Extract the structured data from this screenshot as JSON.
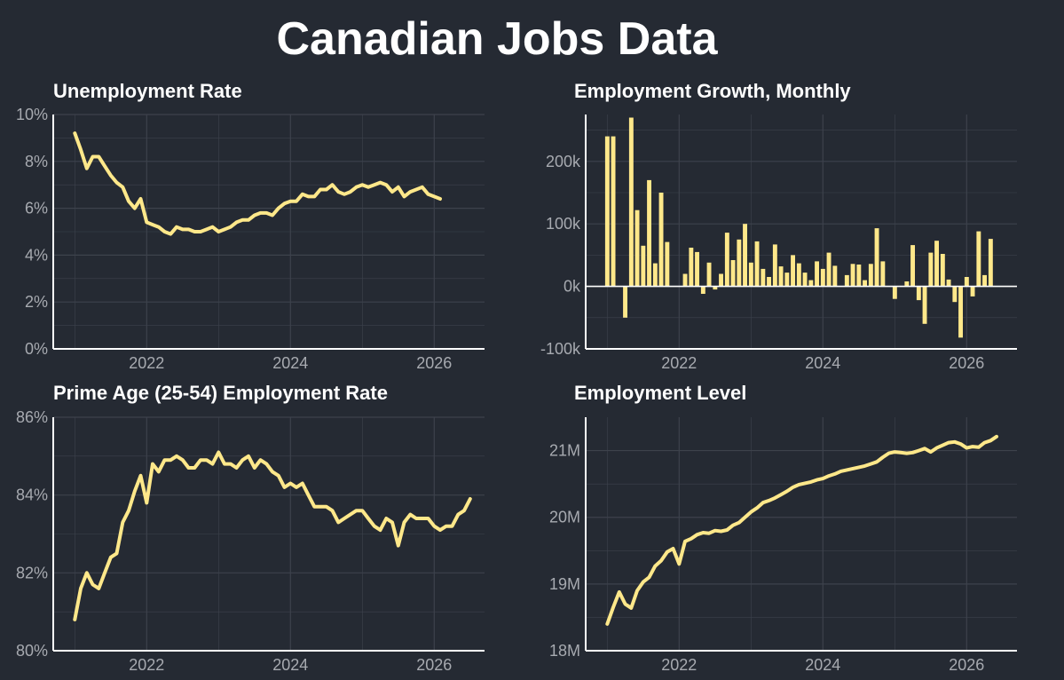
{
  "title": "Canadian Jobs Data",
  "colors": {
    "background": "#252a33",
    "line": "#ffe88a",
    "grid": "#3d424c",
    "axis": "#ffffff",
    "tick_text": "#a7aab0",
    "title_text": "#ffffff"
  },
  "chart_data": [
    {
      "id": "unemp",
      "type": "line",
      "title": "Unemployment Rate",
      "xlim": [
        2020.7,
        2026.7
      ],
      "ylim": [
        0,
        10
      ],
      "x_ticks": [
        2022,
        2024,
        2026
      ],
      "x_tick_labels": [
        "2022",
        "2024",
        "2026"
      ],
      "y_ticks": [
        0,
        2,
        4,
        6,
        8,
        10
      ],
      "y_tick_labels": [
        "0%",
        "2%",
        "4%",
        "6%",
        "8%",
        "10%"
      ],
      "grid": true,
      "series": [
        {
          "x_start": 2021.0,
          "x_step": 0.08333,
          "values": [
            9.2,
            8.5,
            7.7,
            8.2,
            8.2,
            7.8,
            7.4,
            7.1,
            6.9,
            6.3,
            6.0,
            6.4,
            5.4,
            5.3,
            5.2,
            5.0,
            4.9,
            5.2,
            5.1,
            5.1,
            5.0,
            5.0,
            5.1,
            5.2,
            5.0,
            5.1,
            5.2,
            5.4,
            5.5,
            5.5,
            5.7,
            5.8,
            5.8,
            5.7,
            6.0,
            6.2,
            6.3,
            6.3,
            6.6,
            6.5,
            6.5,
            6.8,
            6.8,
            7.0,
            6.7,
            6.6,
            6.7,
            6.9,
            7.0,
            6.9,
            7.0,
            7.1,
            7.0,
            6.7,
            6.9,
            6.5,
            6.7,
            6.8,
            6.9,
            6.6,
            6.5,
            6.4
          ]
        }
      ]
    },
    {
      "id": "growth",
      "type": "bar",
      "title": "Employment Growth, Monthly",
      "xlim": [
        2020.7,
        2026.7
      ],
      "ylim": [
        -100000,
        275000
      ],
      "x_ticks": [
        2022,
        2024,
        2026
      ],
      "x_tick_labels": [
        "2022",
        "2024",
        "2026"
      ],
      "y_ticks": [
        -100000,
        0,
        100000,
        200000
      ],
      "y_tick_labels": [
        "-100k",
        "0k",
        "100k",
        "200k"
      ],
      "grid": true,
      "series": [
        {
          "x_start": 2021.0,
          "x_step": 0.08333,
          "values": [
            240000,
            240000,
            0,
            -50000,
            270000,
            122000,
            65000,
            170000,
            37000,
            150000,
            71000,
            0,
            0,
            20000,
            62000,
            55000,
            -12000,
            38000,
            -5000,
            20000,
            86000,
            42000,
            75000,
            100000,
            38000,
            72000,
            28000,
            15000,
            67000,
            32000,
            22000,
            50000,
            37000,
            22000,
            10000,
            40000,
            28000,
            54000,
            33000,
            0,
            18000,
            36000,
            35000,
            10000,
            36000,
            93000,
            40000,
            0,
            -20000,
            0,
            8000,
            66000,
            -22000,
            -60000,
            54000,
            73000,
            52000,
            11000,
            -25000,
            -82000,
            15000,
            -16000,
            88000,
            18000,
            76000
          ]
        }
      ]
    },
    {
      "id": "prime",
      "type": "line",
      "title": "Prime Age (25-54) Employment Rate",
      "xlim": [
        2020.7,
        2026.7
      ],
      "ylim": [
        80,
        86
      ],
      "x_ticks": [
        2022,
        2024,
        2026
      ],
      "x_tick_labels": [
        "2022",
        "2024",
        "2026"
      ],
      "y_ticks": [
        80,
        82,
        84,
        86
      ],
      "y_tick_labels": [
        "80%",
        "82%",
        "84%",
        "86%"
      ],
      "grid": true,
      "series": [
        {
          "x_start": 2021.0,
          "x_step": 0.08333,
          "values": [
            80.8,
            81.6,
            82.0,
            81.7,
            81.6,
            82.0,
            82.4,
            82.5,
            83.3,
            83.6,
            84.1,
            84.5,
            83.8,
            84.8,
            84.6,
            84.9,
            84.9,
            85.0,
            84.9,
            84.7,
            84.7,
            84.9,
            84.9,
            84.8,
            85.1,
            84.8,
            84.8,
            84.7,
            84.9,
            85.0,
            84.7,
            84.9,
            84.8,
            84.6,
            84.5,
            84.2,
            84.3,
            84.2,
            84.3,
            84.0,
            83.7,
            83.7,
            83.7,
            83.6,
            83.3,
            83.4,
            83.5,
            83.6,
            83.6,
            83.4,
            83.2,
            83.1,
            83.4,
            83.3,
            82.7,
            83.3,
            83.5,
            83.4,
            83.4,
            83.4,
            83.2,
            83.1,
            83.2,
            83.2,
            83.5,
            83.6,
            83.9
          ]
        }
      ]
    },
    {
      "id": "level",
      "type": "line",
      "title": "Employment Level",
      "xlim": [
        2020.7,
        2026.7
      ],
      "ylim": [
        18000000,
        21500000
      ],
      "x_ticks": [
        2022,
        2024,
        2026
      ],
      "x_tick_labels": [
        "2022",
        "2024",
        "2026"
      ],
      "y_ticks": [
        18000000,
        19000000,
        20000000,
        21000000
      ],
      "y_tick_labels": [
        "18M",
        "19M",
        "20M",
        "21M"
      ],
      "grid": true,
      "series": [
        {
          "x_start": 2021.0,
          "x_step": 0.08333,
          "values": [
            18400000,
            18650000,
            18880000,
            18700000,
            18640000,
            18900000,
            19030000,
            19100000,
            19270000,
            19350000,
            19480000,
            19530000,
            19300000,
            19640000,
            19680000,
            19740000,
            19770000,
            19760000,
            19800000,
            19790000,
            19810000,
            19880000,
            19920000,
            20000000,
            20080000,
            20140000,
            20220000,
            20250000,
            20290000,
            20340000,
            20390000,
            20450000,
            20490000,
            20510000,
            20530000,
            20560000,
            20580000,
            20620000,
            20650000,
            20690000,
            20710000,
            20730000,
            20750000,
            20770000,
            20800000,
            20830000,
            20900000,
            20960000,
            20980000,
            20970000,
            20960000,
            20970000,
            21000000,
            21030000,
            20980000,
            21040000,
            21080000,
            21120000,
            21130000,
            21100000,
            21040000,
            21060000,
            21050000,
            21120000,
            21150000,
            21210000
          ]
        }
      ]
    }
  ]
}
